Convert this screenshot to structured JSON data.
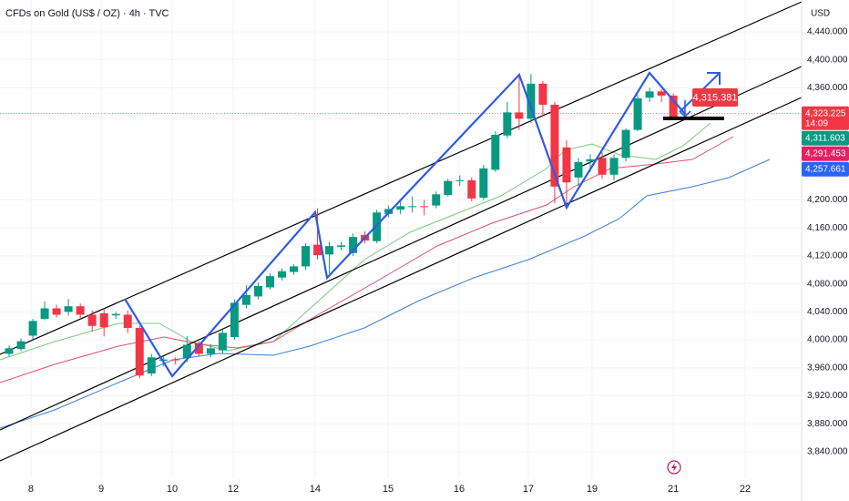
{
  "chart_data": {
    "type": "candlestick",
    "title": "CFDs on Gold (US$ / OZ) · 4h · TVC",
    "currency": "USD",
    "up_color": "#089981",
    "down_color": "#f23645",
    "grid": true,
    "x": [
      1,
      2,
      3,
      4,
      5,
      6,
      7,
      8,
      9,
      10,
      11,
      12,
      13,
      14,
      15,
      16,
      17,
      18,
      19,
      20,
      21,
      22,
      23,
      24,
      25,
      26,
      27,
      28,
      29,
      30,
      31,
      32,
      33,
      34,
      35,
      36,
      37,
      38,
      39,
      40,
      41,
      42,
      43,
      44,
      45,
      46,
      47,
      48,
      49,
      50,
      51,
      52,
      53,
      54,
      55,
      56,
      57
    ],
    "open": [
      3980,
      3987,
      4006,
      4030,
      4045,
      4040,
      4048,
      4036,
      4038,
      4035,
      4036,
      4017,
      3952,
      3970,
      3972,
      3974,
      3995,
      3980,
      3985,
      4004,
      4050,
      4062,
      4075,
      4089,
      4097,
      4105,
      4136,
      4122,
      4133,
      4124,
      4150,
      4141,
      4180,
      4186,
      4190,
      4191,
      4192,
      4207,
      4227,
      4228,
      4203,
      4243,
      4292,
      4325,
      4316,
      4366,
      4336,
      4275,
      4232,
      4255,
      4260,
      4236,
      4260,
      4300,
      4346,
      4355,
      4349
    ],
    "high": [
      3992,
      4002,
      4030,
      4055,
      4050,
      4058,
      4052,
      4042,
      4045,
      4040,
      4042,
      4020,
      3980,
      3976,
      3975,
      4005,
      3998,
      3994,
      4015,
      4058,
      4078,
      4082,
      4095,
      4102,
      4108,
      4138,
      4188,
      4140,
      4140,
      4152,
      4155,
      4186,
      4192,
      4200,
      4205,
      4200,
      4212,
      4230,
      4235,
      4232,
      4250,
      4298,
      4340,
      4380,
      4380,
      4370,
      4340,
      4285,
      4260,
      4265,
      4268,
      4265,
      4302,
      4350,
      4360,
      4358,
      4352
    ],
    "low": [
      3976,
      3984,
      4000,
      4028,
      4032,
      4035,
      4030,
      4012,
      4005,
      4030,
      4010,
      3945,
      3948,
      3962,
      3965,
      3968,
      3976,
      3975,
      3980,
      4000,
      4045,
      4058,
      4072,
      4085,
      4093,
      4100,
      4115,
      4095,
      4128,
      4120,
      4138,
      4138,
      4175,
      4180,
      4182,
      4178,
      4188,
      4205,
      4220,
      4198,
      4200,
      4240,
      4288,
      4300,
      4310,
      4320,
      4195,
      4195,
      4220,
      4240,
      4230,
      4228,
      4255,
      4298,
      4340,
      4340,
      4315
    ],
    "close": [
      3988,
      3998,
      4027,
      4045,
      4036,
      4048,
      4036,
      4020,
      4018,
      4037,
      4017,
      3949,
      3975,
      3972,
      3971,
      3993,
      3980,
      3988,
      4010,
      4053,
      4064,
      4077,
      4091,
      4098,
      4105,
      4134,
      4121,
      4134,
      4135,
      4147,
      4142,
      4182,
      4187,
      4191,
      4191,
      4190,
      4208,
      4227,
      4228,
      4202,
      4245,
      4293,
      4325,
      4316,
      4366,
      4336,
      4219,
      4225,
      4254,
      4258,
      4236,
      4260,
      4300,
      4345,
      4355,
      4349,
      4319
    ],
    "xlim": [
      0.23,
      67.82
    ],
    "ylim": [
      3802.3,
      4485.6
    ],
    "xticks": [
      {
        "value": 2.84,
        "label": "8"
      },
      {
        "value": 8.76,
        "label": "9"
      },
      {
        "value": 14.75,
        "label": "10"
      },
      {
        "value": 19.89,
        "label": "12"
      },
      {
        "value": 26.8,
        "label": "14"
      },
      {
        "value": 32.95,
        "label": "15"
      },
      {
        "value": 38.94,
        "label": "16"
      },
      {
        "value": 44.78,
        "label": "17"
      },
      {
        "value": 50.15,
        "label": "19"
      },
      {
        "value": 57.0,
        "label": "21"
      },
      {
        "value": 63.06,
        "label": "22"
      }
    ],
    "yticks": [
      {
        "value": 4440,
        "label": "4,440.000"
      },
      {
        "value": 4400,
        "label": "4,400.000"
      },
      {
        "value": 4360,
        "label": "4,360.000"
      },
      {
        "value": 4200,
        "label": "4,200.000"
      },
      {
        "value": 4160,
        "label": "4,160.000"
      },
      {
        "value": 4120,
        "label": "4,120.000"
      },
      {
        "value": 4080,
        "label": "4,080.000"
      },
      {
        "value": 4040,
        "label": "4,040.000"
      },
      {
        "value": 4000,
        "label": "4,000.000"
      },
      {
        "value": 3960,
        "label": "3,960.000"
      },
      {
        "value": 3920,
        "label": "3,920.000"
      },
      {
        "value": 3880,
        "label": "3,880.000"
      },
      {
        "value": 3840,
        "label": "3,840.000"
      }
    ],
    "price_labels": [
      {
        "value": 4323.225,
        "label": "4,323.225",
        "sublabel": "14:09",
        "color": "#f23645"
      },
      {
        "value": 4311.603,
        "label": "4,311.603",
        "color": "#089981"
      },
      {
        "value": 4291.453,
        "label": "4,291.453",
        "color": "#e91e63"
      },
      {
        "value": 4257.661,
        "label": "4,257.661",
        "color": "#2962ff"
      }
    ],
    "callout": "4,315.381"
  }
}
